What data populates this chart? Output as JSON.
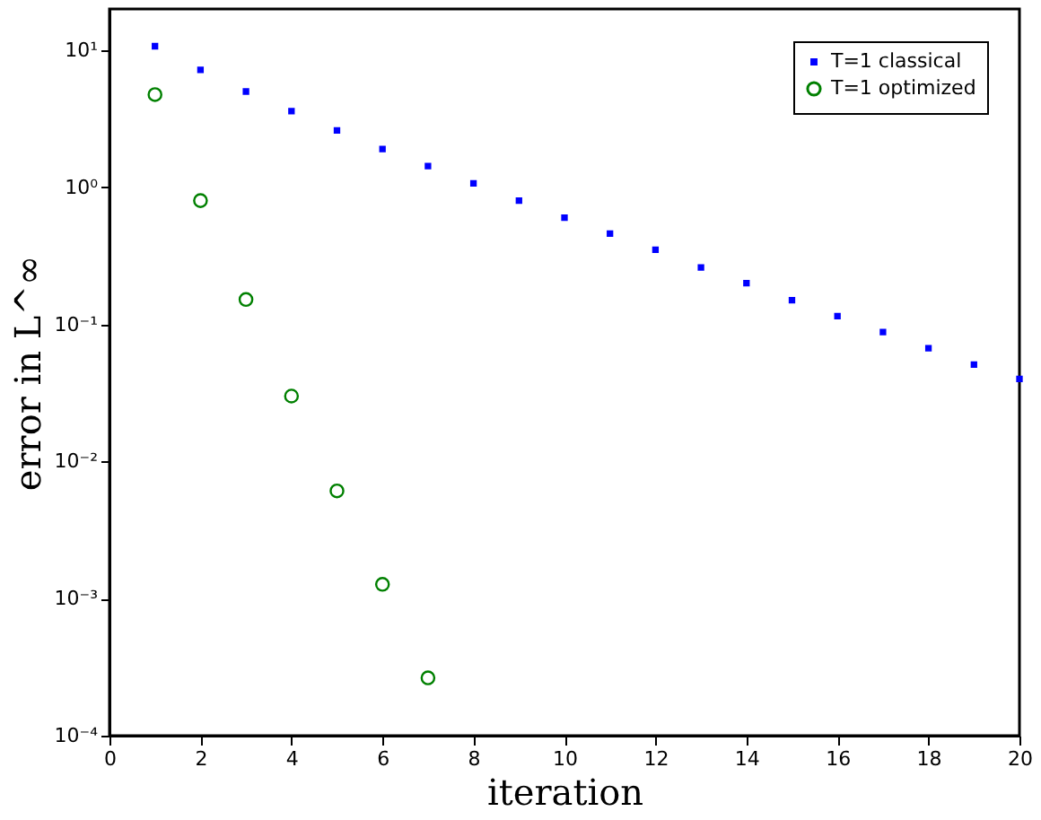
{
  "chart_data": {
    "type": "scatter",
    "xlabel": "iteration",
    "ylabel": "error in L^∞",
    "log": "y",
    "grid": false,
    "legend": "top right",
    "xlim": [
      0,
      20
    ],
    "xticks": [
      0,
      2,
      4,
      6,
      8,
      10,
      12,
      14,
      16,
      18,
      20
    ],
    "ylim": [
      0.0001,
      20
    ],
    "yticks": [
      {
        "value": 0.0001,
        "label": "10⁻⁴"
      },
      {
        "value": 0.001,
        "label": "10⁻³"
      },
      {
        "value": 0.01,
        "label": "10⁻²"
      },
      {
        "value": 0.1,
        "label": "10⁻¹"
      },
      {
        "value": 1,
        "label": "10⁰"
      },
      {
        "value": 10,
        "label": "10¹"
      }
    ],
    "series": [
      {
        "name": "T=1 classical",
        "color": "#0000ff",
        "marker": "square",
        "x": [
          1,
          2,
          3,
          4,
          5,
          6,
          7,
          8,
          9,
          10,
          11,
          12,
          13,
          14,
          15,
          16,
          17,
          18,
          19,
          20
        ],
        "values": [
          10.7,
          7.2,
          5.0,
          3.6,
          2.6,
          1.9,
          1.43,
          1.07,
          0.8,
          0.6,
          0.46,
          0.35,
          0.26,
          0.2,
          0.15,
          0.115,
          0.088,
          0.067,
          0.051,
          0.04
        ]
      },
      {
        "name": "T=1 optimized",
        "color": "#008000",
        "marker": "circle",
        "x": [
          1,
          2,
          3,
          4,
          5,
          6,
          7
        ],
        "values": [
          4.75,
          0.8,
          0.152,
          0.03,
          0.0061,
          0.00127,
          0.000264
        ]
      }
    ]
  }
}
